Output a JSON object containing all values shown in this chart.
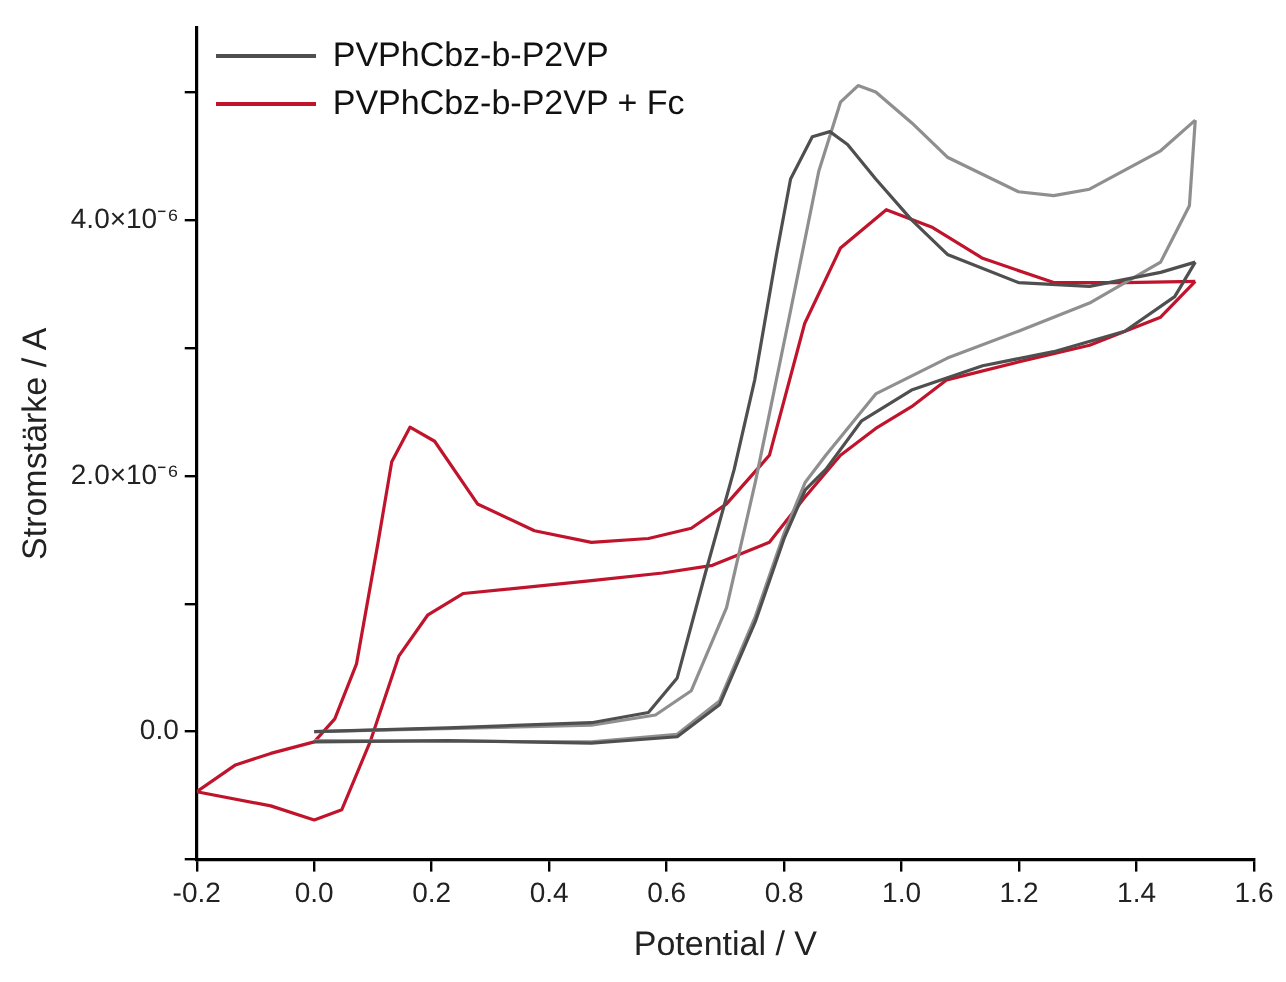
{
  "chart_data": {
    "type": "line",
    "xlabel": "Potential / V",
    "ylabel": "Stromstärke / A",
    "xlim": [
      -0.2,
      1.6
    ],
    "xticks": [
      -0.2,
      {
        "value": 0,
        "label": "0.0"
      },
      0.2,
      0.4,
      0.6,
      0.8,
      {
        "value": 1,
        "label": "1.0"
      },
      1.2,
      1.4,
      1.6
    ],
    "ylim": [
      -1e-06,
      5.5e-06
    ],
    "yticks": [
      {
        "value": -1e-06,
        "label": null
      },
      {
        "value": 0,
        "label": "0.0"
      },
      {
        "value": 1e-06,
        "label": null
      },
      {
        "value": 2e-06,
        "label": "2.0×10⁻⁶"
      },
      {
        "value": 3e-06,
        "label": null
      },
      {
        "value": 4e-06,
        "label": "4.0×10⁻⁶"
      },
      {
        "value": 5e-06,
        "label": null
      }
    ],
    "grid": false,
    "legend": "top left",
    "marker": "none",
    "line_style": "solid",
    "series": [
      {
        "name": "PVPhCbz-b-P2VP",
        "color": "#4f4f4f",
        "x": [
          0.0,
          0.228,
          0.472,
          0.569,
          0.618,
          0.666,
          0.715,
          0.75,
          0.787,
          0.811,
          0.848,
          0.878,
          0.908,
          0.956,
          1.017,
          1.078,
          1.199,
          1.32,
          1.441,
          1.5
        ],
        "values": [
          0.0,
          3e-08,
          7e-08,
          1.5e-07,
          4.2e-07,
          1.24e-06,
          2.05e-06,
          2.75e-06,
          3.73e-06,
          4.32e-06,
          4.65e-06,
          4.69e-06,
          4.59e-06,
          4.32e-06,
          4e-06,
          3.73e-06,
          3.51e-06,
          3.48e-06,
          3.59e-06,
          3.67e-06
        ]
      },
      {
        "color": "#4f4f4f",
        "x": [
          1.5,
          1.465,
          1.38,
          1.259,
          1.138,
          1.017,
          0.932,
          0.871,
          0.836,
          0.8,
          0.751,
          0.69,
          0.618,
          0.472,
          0.228,
          0.0
        ],
        "values": [
          3.67e-06,
          3.4e-06,
          3.13e-06,
          2.97e-06,
          2.86e-06,
          2.67e-06,
          2.43e-06,
          2.05e-06,
          1.89e-06,
          1.51e-06,
          8.6e-07,
          2.1e-07,
          -4e-08,
          -9e-08,
          -7e-08,
          -8e-08
        ]
      },
      {
        "color": "#8f8f8f",
        "x": [
          0.0,
          0.472,
          0.581,
          0.642,
          0.702,
          0.751,
          0.811,
          0.859,
          0.896,
          0.926,
          0.956,
          1.017,
          1.078,
          1.199,
          1.259,
          1.32,
          1.441,
          1.5
        ],
        "values": [
          0.0,
          5e-08,
          1.3e-07,
          3.2e-07,
          9.7e-07,
          1.95e-06,
          3.29e-06,
          4.38e-06,
          4.92e-06,
          5.05e-06,
          5e-06,
          4.76e-06,
          4.49e-06,
          4.22e-06,
          4.19e-06,
          4.24e-06,
          4.54e-06,
          4.78e-06
        ]
      },
      {
        "color": "#8f8f8f",
        "x": [
          1.5,
          1.49,
          1.441,
          1.32,
          1.199,
          1.078,
          0.956,
          0.871,
          0.836,
          0.8,
          0.751,
          0.69,
          0.618,
          0.472,
          0.0
        ],
        "values": [
          4.78e-06,
          4.11e-06,
          3.67e-06,
          3.35e-06,
          3.13e-06,
          2.92e-06,
          2.64e-06,
          2.16e-06,
          1.95e-06,
          1.55e-06,
          9e-07,
          2.4e-07,
          -2e-08,
          -8e-08,
          -7e-08
        ]
      },
      {
        "name": "PVPhCbz-b-P2VP + Fc",
        "color": "#c0142c",
        "x": [
          -0.2,
          -0.134,
          -0.074,
          0.0,
          0.035,
          0.072,
          0.108,
          0.132,
          0.163,
          0.205,
          0.278,
          0.375,
          0.472,
          0.569,
          0.642,
          0.702,
          0.775,
          0.835,
          0.896,
          0.974,
          1.053,
          1.138,
          1.259,
          1.38,
          1.5
        ],
        "values": [
          -4.7e-07,
          -2.6e-07,
          -1.7e-07,
          -8e-08,
          1e-07,
          5.3e-07,
          1.46e-06,
          2.11e-06,
          2.38e-06,
          2.27e-06,
          1.78e-06,
          1.57e-06,
          1.48e-06,
          1.51e-06,
          1.59e-06,
          1.78e-06,
          2.16e-06,
          3.19e-06,
          3.78e-06,
          4.08e-06,
          3.94e-06,
          3.7e-06,
          3.51e-06,
          3.51e-06,
          3.52e-06
        ]
      },
      {
        "color": "#c0142c",
        "x": [
          1.5,
          1.441,
          1.32,
          1.199,
          1.077,
          1.017,
          0.956,
          0.896,
          0.835,
          0.775,
          0.678,
          0.593,
          0.472,
          0.254,
          0.193,
          0.144,
          0.096,
          0.047,
          0.0,
          -0.074,
          -0.2
        ],
        "values": [
          3.52e-06,
          3.24e-06,
          3.02e-06,
          2.89e-06,
          2.75e-06,
          2.54e-06,
          2.37e-06,
          2.16e-06,
          1.83e-06,
          1.48e-06,
          1.3e-06,
          1.24e-06,
          1.18e-06,
          1.08e-06,
          9.1e-07,
          5.9e-07,
          -7e-08,
          -6.1e-07,
          -6.9e-07,
          -5.8e-07,
          -4.7e-07
        ]
      }
    ]
  }
}
